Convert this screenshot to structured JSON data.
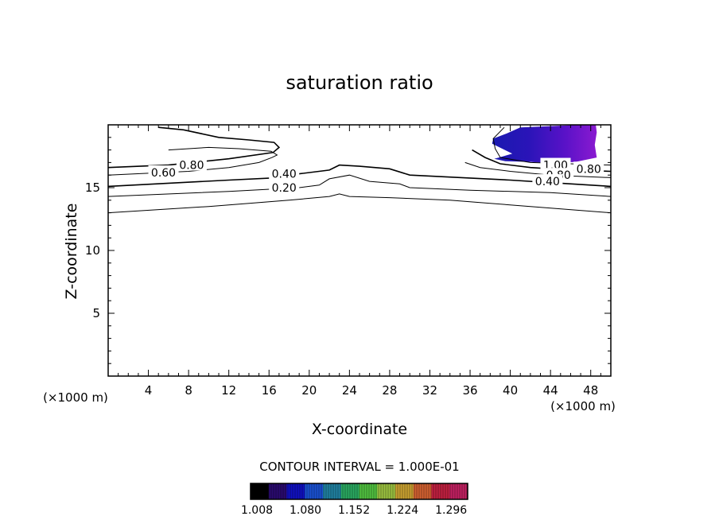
{
  "chart_data": {
    "type": "contour",
    "title": "saturation ratio",
    "xlabel": "X-coordinate",
    "ylabel": "Z-coordinate",
    "x_unit": "(×1000 m)",
    "y_unit": "(×1000 m)",
    "xlim": [
      0,
      50
    ],
    "ylim": [
      0,
      20
    ],
    "x_ticks": [
      4,
      8,
      12,
      16,
      20,
      24,
      28,
      32,
      36,
      40,
      44,
      48
    ],
    "y_ticks": [
      5,
      10,
      15
    ],
    "contour_interval_text": "CONTOUR INTERVAL = 1.000E-01",
    "contour_labels": [
      {
        "text": "0.80",
        "x": 8.3,
        "y": 16.8
      },
      {
        "text": "0.60",
        "x": 5.5,
        "y": 16.2
      },
      {
        "text": "0.40",
        "x": 17.5,
        "y": 16.1
      },
      {
        "text": "0.20",
        "x": 17.5,
        "y": 15.0
      },
      {
        "text": "1.00",
        "x": 44.5,
        "y": 16.8
      },
      {
        "text": "0.80",
        "x": 44.8,
        "y": 16.0
      },
      {
        "text": "0.80",
        "x": 47.8,
        "y": 16.5
      },
      {
        "text": "0.40",
        "x": 43.7,
        "y": 15.5
      }
    ],
    "contour_lines": [
      {
        "level": 0.1,
        "points": [
          [
            0,
            13.0
          ],
          [
            10,
            13.5
          ],
          [
            18,
            14.0
          ],
          [
            22,
            14.3
          ],
          [
            23,
            14.5
          ],
          [
            24,
            14.3
          ],
          [
            28,
            14.2
          ],
          [
            34,
            14.0
          ],
          [
            42,
            13.5
          ],
          [
            50,
            13.0
          ]
        ]
      },
      {
        "level": 0.2,
        "points": [
          [
            0,
            14.3
          ],
          [
            12,
            14.7
          ],
          [
            19,
            15.0
          ],
          [
            21,
            15.2
          ],
          [
            22,
            15.7
          ],
          [
            24,
            16.0
          ],
          [
            26,
            15.5
          ],
          [
            29,
            15.3
          ],
          [
            30,
            15.0
          ],
          [
            36,
            14.8
          ],
          [
            44,
            14.6
          ],
          [
            50,
            14.3
          ]
        ]
      },
      {
        "level": 0.4,
        "points": [
          [
            0,
            15.1
          ],
          [
            12,
            15.6
          ],
          [
            17,
            15.8
          ],
          [
            19,
            16.1
          ],
          [
            22,
            16.4
          ],
          [
            23,
            16.8
          ],
          [
            25,
            16.7
          ],
          [
            28,
            16.5
          ],
          [
            30,
            16.0
          ],
          [
            40,
            15.6
          ],
          [
            44,
            15.4
          ],
          [
            50,
            15.1
          ]
        ]
      },
      {
        "level": 0.6,
        "points": [
          [
            0,
            16.0
          ],
          [
            8,
            16.3
          ],
          [
            12,
            16.6
          ],
          [
            15,
            17.0
          ],
          [
            16.3,
            17.4
          ],
          [
            16.8,
            17.6
          ],
          [
            16.2,
            17.9
          ],
          [
            13,
            18.1
          ],
          [
            10,
            18.2
          ],
          [
            6,
            18.0
          ]
        ]
      },
      {
        "level": 0.6,
        "points": [
          [
            50,
            15.8
          ],
          [
            44,
            16.0
          ],
          [
            40,
            16.3
          ],
          [
            37,
            16.6
          ],
          [
            35.5,
            17.0
          ]
        ]
      },
      {
        "level": 0.8,
        "points": [
          [
            0,
            16.6
          ],
          [
            6,
            16.8
          ],
          [
            12,
            17.3
          ],
          [
            16.4,
            17.8
          ],
          [
            17,
            18.2
          ],
          [
            16.5,
            18.6
          ],
          [
            14,
            18.8
          ],
          [
            11,
            19.0
          ],
          [
            7.5,
            19.6
          ],
          [
            5,
            19.8
          ]
        ]
      },
      {
        "level": 0.8,
        "points": [
          [
            50,
            16.3
          ],
          [
            46,
            16.4
          ],
          [
            42,
            16.6
          ],
          [
            39,
            16.9
          ],
          [
            37.5,
            17.4
          ],
          [
            36.2,
            18.0
          ]
        ]
      },
      {
        "level": 1.0,
        "points": [
          [
            50,
            16.8
          ],
          [
            46,
            16.9
          ],
          [
            42,
            17.0
          ],
          [
            39,
            17.4
          ],
          [
            38.5,
            18.1
          ],
          [
            38.3,
            18.9
          ],
          [
            39.4,
            19.8
          ]
        ]
      }
    ],
    "filled_region": {
      "min": 1.008,
      "max": 1.33
    },
    "colorbar": {
      "ticks": [
        "1.008",
        "1.080",
        "1.152",
        "1.224",
        "1.296"
      ],
      "tick_values": [
        1.008,
        1.08,
        1.152,
        1.224,
        1.296
      ],
      "min": 1.008,
      "max": 1.33,
      "colors": [
        "#000000",
        "#2a0a6e",
        "#1010c0",
        "#1a50d0",
        "#2080a0",
        "#2aa860",
        "#50c040",
        "#9ac040",
        "#c8a030",
        "#d06030",
        "#c02040",
        "#c02060"
      ]
    },
    "colors": {
      "line": "#000000",
      "background": "#ffffff"
    }
  }
}
